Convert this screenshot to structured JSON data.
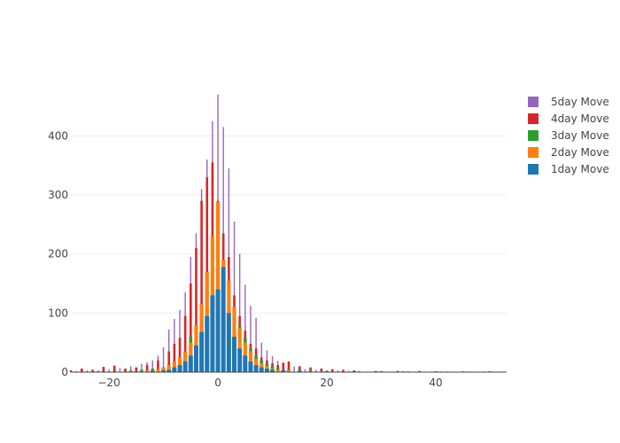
{
  "legend": {
    "items": [
      {
        "name": "5day Move",
        "color": "#9467bd"
      },
      {
        "name": "4day Move",
        "color": "#d62728"
      },
      {
        "name": "3day Move",
        "color": "#2ca02c"
      },
      {
        "name": "2day Move",
        "color": "#ff7f0e"
      },
      {
        "name": "1day Move",
        "color": "#1f77b4"
      }
    ]
  },
  "chart_data": {
    "type": "bar",
    "title": "",
    "xlabel": "",
    "ylabel": "",
    "barmode": "overlay",
    "xlim": [
      -27,
      53
    ],
    "ylim": [
      0,
      480
    ],
    "x_ticks": [
      -20,
      0,
      20,
      40
    ],
    "x_tick_labels": [
      "−20",
      "0",
      "20",
      "40"
    ],
    "y_ticks": [
      0,
      100,
      200,
      300,
      400
    ],
    "grid": true,
    "legend_position": "right",
    "series": [
      {
        "name": "5day Move",
        "color": "#9467bd",
        "x": [
          -26,
          -24,
          -22,
          -20,
          -18,
          -16,
          -14,
          -13,
          -12,
          -11,
          -10,
          -9,
          -8,
          -7,
          -6,
          -5,
          -4,
          -3,
          -2,
          -1,
          0,
          1,
          2,
          3,
          4,
          5,
          6,
          7,
          8,
          9,
          10,
          11,
          12,
          13,
          14,
          15,
          16,
          18,
          20,
          22,
          24,
          26,
          30,
          34,
          38,
          42,
          46,
          50
        ],
        "y": [
          2,
          3,
          3,
          5,
          7,
          10,
          14,
          17,
          20,
          28,
          42,
          72,
          90,
          105,
          135,
          195,
          235,
          310,
          360,
          425,
          470,
          415,
          345,
          255,
          200,
          148,
          112,
          92,
          50,
          37,
          27,
          19,
          15,
          14,
          10,
          7,
          5,
          4,
          3,
          3,
          2,
          2,
          2,
          2,
          1,
          1,
          1,
          1
        ]
      },
      {
        "name": "4day Move",
        "color": "#d62728",
        "x": [
          -27,
          -25,
          -23,
          -21,
          -19,
          -17,
          -15,
          -13,
          -11,
          -9,
          -8,
          -7,
          -6,
          -5,
          -4,
          -3,
          -2,
          -1,
          0,
          1,
          2,
          3,
          4,
          5,
          6,
          7,
          8,
          9,
          10,
          11,
          12,
          13,
          15,
          17,
          19,
          21,
          23,
          25,
          29,
          33,
          37,
          41,
          45,
          49,
          52
        ],
        "y": [
          3,
          6,
          4,
          9,
          11,
          6,
          8,
          12,
          20,
          35,
          48,
          58,
          95,
          150,
          210,
          290,
          330,
          355,
          290,
          235,
          195,
          130,
          95,
          70,
          48,
          40,
          25,
          20,
          15,
          12,
          16,
          18,
          10,
          8,
          6,
          5,
          4,
          3,
          2,
          2,
          2,
          1,
          1,
          1,
          1
        ]
      },
      {
        "name": "3day Move",
        "color": "#2ca02c",
        "x": [
          -22,
          -19,
          -16,
          -14,
          -12,
          -10,
          -9,
          -8,
          -7,
          -6,
          -5,
          -4,
          -3,
          -2,
          -1,
          0,
          1,
          2,
          3,
          4,
          5,
          6,
          7,
          8,
          9,
          10,
          11,
          13,
          15,
          17,
          20,
          25,
          30,
          35,
          40,
          45,
          50
        ],
        "y": [
          1,
          2,
          3,
          4,
          6,
          8,
          12,
          18,
          25,
          32,
          60,
          80,
          110,
          130,
          150,
          176,
          165,
          140,
          110,
          80,
          58,
          40,
          28,
          20,
          14,
          10,
          7,
          5,
          4,
          3,
          2,
          2,
          1,
          1,
          1,
          1,
          1
        ]
      },
      {
        "name": "2day Move",
        "color": "#ff7f0e",
        "x": [
          -20,
          -16,
          -13,
          -11,
          -10,
          -9,
          -8,
          -7,
          -6,
          -5,
          -4,
          -3,
          -2,
          -1,
          0,
          1,
          2,
          3,
          4,
          5,
          6,
          7,
          8,
          9,
          10,
          11,
          13,
          15,
          19,
          25,
          30,
          35,
          40,
          45
        ],
        "y": [
          1,
          2,
          3,
          5,
          8,
          12,
          18,
          25,
          35,
          50,
          80,
          115,
          170,
          230,
          288,
          190,
          155,
          110,
          75,
          50,
          35,
          22,
          15,
          10,
          6,
          4,
          3,
          2,
          1,
          1,
          1,
          1,
          1,
          1
        ]
      },
      {
        "name": "1day Move",
        "color": "#1f77b4",
        "x": [
          -15,
          -12,
          -10,
          -9,
          -8,
          -7,
          -6,
          -5,
          -4,
          -3,
          -2,
          -1,
          0,
          1,
          2,
          3,
          4,
          5,
          6,
          7,
          8,
          9,
          10,
          12,
          15,
          20,
          30,
          40,
          50
        ],
        "y": [
          1,
          2,
          3,
          4,
          8,
          12,
          18,
          28,
          45,
          68,
          95,
          130,
          140,
          178,
          100,
          60,
          40,
          28,
          18,
          12,
          8,
          6,
          4,
          3,
          2,
          1,
          1,
          1,
          1
        ]
      }
    ]
  }
}
